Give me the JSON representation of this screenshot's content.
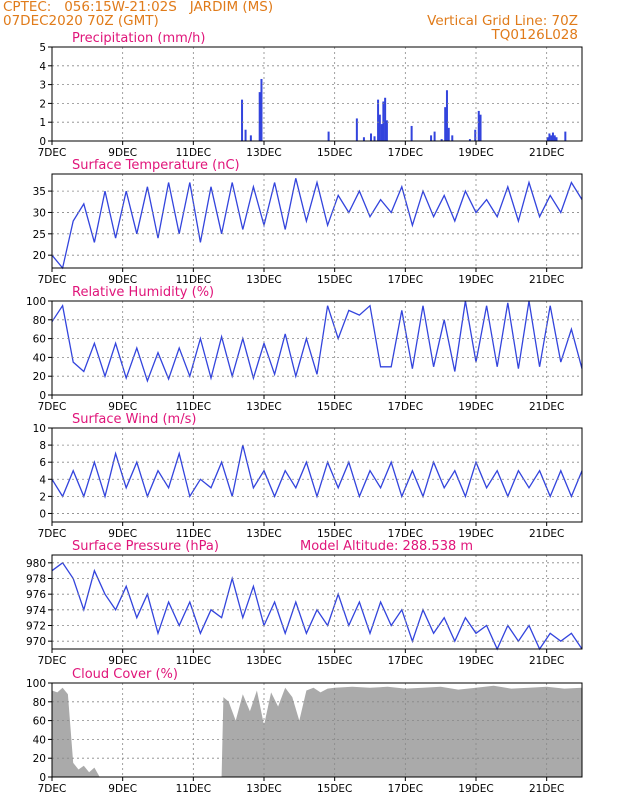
{
  "header": {
    "line1": "CPTEC:   056:15W-21:02S   JARDIM (MS)",
    "line2": "07DEC2020 70Z (GMT)",
    "right1": "Vertical Grid Line: 70Z",
    "right2": "TQ0126L028"
  },
  "colors": {
    "header": "#e07b1a",
    "title": "#e0157a",
    "line": "#3344dd",
    "cloud": "#aaaaaa"
  },
  "x_labels": [
    "7DEC",
    "9DEC",
    "11DEC",
    "13DEC",
    "15DEC",
    "17DEC",
    "19DEC",
    "21DEC"
  ],
  "chart_data": [
    {
      "id": "precip",
      "type": "bar",
      "title": "Precipitation (mm/h)",
      "ylim": [
        0,
        5
      ],
      "yticks": [
        0,
        1,
        2,
        3,
        4,
        5
      ],
      "bars": [
        [
          5.35,
          2.2
        ],
        [
          5.45,
          0.6
        ],
        [
          5.6,
          0.3
        ],
        [
          5.85,
          2.6
        ],
        [
          5.9,
          3.3
        ],
        [
          7.8,
          0.5
        ],
        [
          8.6,
          1.2
        ],
        [
          8.8,
          0.2
        ],
        [
          9.0,
          0.4
        ],
        [
          9.1,
          0.25
        ],
        [
          9.2,
          2.2
        ],
        [
          9.25,
          1.4
        ],
        [
          9.3,
          0.9
        ],
        [
          9.35,
          2.1
        ],
        [
          9.4,
          2.3
        ],
        [
          9.45,
          1.1
        ],
        [
          10.15,
          0.8
        ],
        [
          10.7,
          0.3
        ],
        [
          10.8,
          0.5
        ],
        [
          11.0,
          0.1
        ],
        [
          11.1,
          1.8
        ],
        [
          11.15,
          2.7
        ],
        [
          11.2,
          0.7
        ],
        [
          11.3,
          0.3
        ],
        [
          11.8,
          0.1
        ],
        [
          11.95,
          0.6
        ],
        [
          12.05,
          1.6
        ],
        [
          12.1,
          1.4
        ],
        [
          14.0,
          0.2
        ],
        [
          14.05,
          0.4
        ],
        [
          14.1,
          0.3
        ],
        [
          14.15,
          0.45
        ],
        [
          14.2,
          0.3
        ],
        [
          14.25,
          0.2
        ],
        [
          14.5,
          0.5
        ]
      ]
    },
    {
      "id": "temp",
      "type": "line",
      "title": "Surface Temperature (nC)",
      "ylim": [
        17,
        39
      ],
      "yticks": [
        20,
        25,
        30,
        35
      ],
      "x": [
        0,
        0.3,
        0.6,
        0.9,
        1.2,
        1.5,
        1.8,
        2.1,
        2.4,
        2.7,
        3.0,
        3.3,
        3.6,
        3.9,
        4.2,
        4.5,
        4.8,
        5.1,
        5.4,
        5.7,
        6.0,
        6.3,
        6.6,
        6.9,
        7.2,
        7.5,
        7.8,
        8.1,
        8.4,
        8.7,
        9.0,
        9.3,
        9.6,
        9.9,
        10.2,
        10.5,
        10.8,
        11.1,
        11.4,
        11.7,
        12.0,
        12.3,
        12.6,
        12.9,
        13.2,
        13.5,
        13.8,
        14.1,
        14.4,
        14.7,
        15.0
      ],
      "y": [
        20,
        17,
        28,
        32,
        23,
        35,
        24,
        35,
        25,
        36,
        24,
        37,
        25,
        37,
        23,
        36,
        25,
        37,
        26,
        36,
        27,
        37,
        26,
        38,
        28,
        37,
        27,
        34,
        30,
        35,
        29,
        33,
        30,
        36,
        27,
        35,
        29,
        34,
        28,
        35,
        30,
        33,
        29,
        36,
        28,
        37,
        29,
        34,
        30,
        37,
        33
      ]
    },
    {
      "id": "rh",
      "type": "line",
      "title": "Relative Humidity (%)",
      "ylim": [
        0,
        100
      ],
      "yticks": [
        0,
        20,
        40,
        60,
        80,
        100
      ],
      "x": [
        0,
        0.3,
        0.6,
        0.9,
        1.2,
        1.5,
        1.8,
        2.1,
        2.4,
        2.7,
        3.0,
        3.3,
        3.6,
        3.9,
        4.2,
        4.5,
        4.8,
        5.1,
        5.4,
        5.7,
        6.0,
        6.3,
        6.6,
        6.9,
        7.2,
        7.5,
        7.8,
        8.1,
        8.4,
        8.7,
        9.0,
        9.3,
        9.6,
        9.9,
        10.2,
        10.5,
        10.8,
        11.1,
        11.4,
        11.7,
        12.0,
        12.3,
        12.6,
        12.9,
        13.2,
        13.5,
        13.8,
        14.1,
        14.4,
        14.7,
        15.0
      ],
      "y": [
        78,
        95,
        35,
        25,
        55,
        20,
        55,
        18,
        50,
        15,
        45,
        17,
        50,
        20,
        60,
        18,
        62,
        20,
        60,
        18,
        55,
        22,
        65,
        20,
        60,
        22,
        95,
        60,
        90,
        85,
        95,
        30,
        30,
        90,
        28,
        95,
        30,
        80,
        25,
        100,
        35,
        95,
        30,
        98,
        28,
        100,
        30,
        95,
        35,
        70,
        28
      ]
    },
    {
      "id": "wind",
      "type": "line",
      "title": "Surface Wind (m/s)",
      "ylim": [
        -1,
        10
      ],
      "yticks": [
        0,
        2,
        4,
        6,
        8,
        10
      ],
      "x": [
        0,
        0.3,
        0.6,
        0.9,
        1.2,
        1.5,
        1.8,
        2.1,
        2.4,
        2.7,
        3.0,
        3.3,
        3.6,
        3.9,
        4.2,
        4.5,
        4.8,
        5.1,
        5.4,
        5.7,
        6.0,
        6.3,
        6.6,
        6.9,
        7.2,
        7.5,
        7.8,
        8.1,
        8.4,
        8.7,
        9.0,
        9.3,
        9.6,
        9.9,
        10.2,
        10.5,
        10.8,
        11.1,
        11.4,
        11.7,
        12.0,
        12.3,
        12.6,
        12.9,
        13.2,
        13.5,
        13.8,
        14.1,
        14.4,
        14.7,
        15.0
      ],
      "y": [
        4,
        2,
        5,
        2,
        6,
        2,
        7,
        3,
        6,
        2,
        5,
        3,
        7,
        2,
        4,
        3,
        6,
        2,
        8,
        3,
        5,
        2,
        5,
        3,
        6,
        2,
        6,
        3,
        6,
        2,
        5,
        3,
        6,
        2,
        5,
        2,
        6,
        3,
        5,
        2,
        6,
        3,
        5,
        2,
        5,
        3,
        5,
        2,
        5,
        2,
        5
      ]
    },
    {
      "id": "pres",
      "type": "line",
      "title": "Surface Pressure (hPa)",
      "annotation": "Model Altitude: 288.538 m",
      "ylim": [
        969,
        981
      ],
      "yticks": [
        970,
        972,
        974,
        976,
        978,
        980
      ],
      "x": [
        0,
        0.3,
        0.6,
        0.9,
        1.2,
        1.5,
        1.8,
        2.1,
        2.4,
        2.7,
        3.0,
        3.3,
        3.6,
        3.9,
        4.2,
        4.5,
        4.8,
        5.1,
        5.4,
        5.7,
        6.0,
        6.3,
        6.6,
        6.9,
        7.2,
        7.5,
        7.8,
        8.1,
        8.4,
        8.7,
        9.0,
        9.3,
        9.6,
        9.9,
        10.2,
        10.5,
        10.8,
        11.1,
        11.4,
        11.7,
        12.0,
        12.3,
        12.6,
        12.9,
        13.2,
        13.5,
        13.8,
        14.1,
        14.4,
        14.7,
        15.0
      ],
      "y": [
        979,
        980,
        978,
        974,
        979,
        976,
        974,
        977,
        973,
        976,
        971,
        975,
        972,
        975,
        971,
        974,
        973,
        978,
        973,
        977,
        972,
        975,
        971,
        975,
        971,
        974,
        972,
        976,
        972,
        975,
        971,
        975,
        972,
        974,
        970,
        974,
        971,
        973,
        970,
        973,
        971,
        972,
        969,
        972,
        970,
        972,
        969,
        971,
        970,
        971,
        969
      ]
    },
    {
      "id": "cloud",
      "type": "area",
      "title": "Cloud Cover (%)",
      "ylim": [
        0,
        100
      ],
      "yticks": [
        0,
        20,
        40,
        60,
        80,
        100
      ],
      "x": [
        0,
        0.15,
        0.3,
        0.45,
        0.6,
        0.75,
        0.9,
        1.05,
        1.2,
        1.35,
        1.5,
        2.0,
        2.5,
        3.0,
        3.5,
        4.0,
        4.5,
        4.8,
        4.85,
        5.0,
        5.2,
        5.4,
        5.6,
        5.8,
        6.0,
        6.2,
        6.4,
        6.6,
        6.8,
        7.0,
        7.2,
        7.4,
        7.6,
        7.8,
        8.0,
        8.5,
        9.0,
        9.5,
        10.0,
        10.5,
        11.0,
        11.5,
        12.0,
        12.5,
        13.0,
        13.5,
        14.0,
        14.5,
        15.0
      ],
      "y": [
        92,
        90,
        95,
        88,
        15,
        8,
        12,
        5,
        10,
        0,
        0,
        0,
        0,
        0,
        0,
        0,
        0,
        0,
        85,
        80,
        60,
        88,
        70,
        92,
        55,
        90,
        75,
        95,
        85,
        60,
        92,
        95,
        90,
        94,
        95,
        96,
        95,
        96,
        94,
        95,
        96,
        93,
        95,
        97,
        94,
        95,
        96,
        94,
        95
      ]
    }
  ]
}
